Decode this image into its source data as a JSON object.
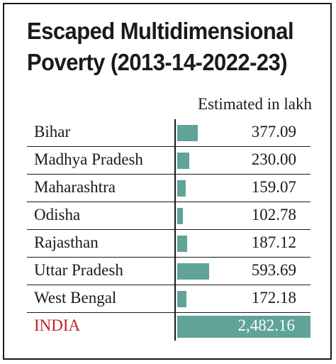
{
  "title_line1": "Escaped Multidimensional",
  "title_line2": "Poverty (2013-14-2022-23)",
  "subhead": "Estimated in lakh",
  "colors": {
    "bar": "#5fa399",
    "india_label": "#c22026",
    "text": "#1a1a1a"
  },
  "chart_data": {
    "type": "bar",
    "title": "Escaped Multidimensional Poverty (2013-14-2022-23)",
    "unit": "Estimated in lakh",
    "categories": [
      "Bihar",
      "Madhya Pradesh",
      "Maharashtra",
      "Odisha",
      "Rajasthan",
      "Uttar Pradesh",
      "West Bengal",
      "INDIA"
    ],
    "values": [
      377.09,
      230.0,
      159.07,
      102.78,
      187.12,
      593.69,
      172.18,
      2482.16
    ],
    "labels": [
      "377.09",
      "230.00",
      "159.07",
      "102.78",
      "187.12",
      "593.69",
      "172.18",
      "2,482.16"
    ],
    "max": 2482.16
  }
}
